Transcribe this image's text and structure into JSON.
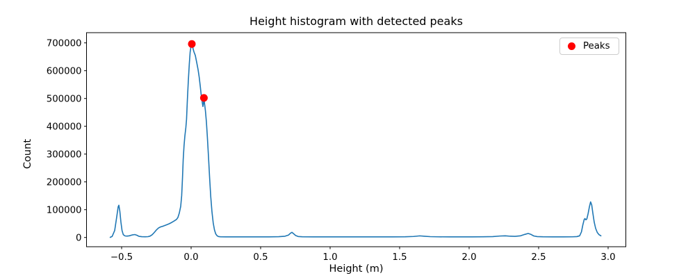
{
  "title": "Height histogram with detected peaks",
  "chart_data": {
    "type": "line",
    "title": "Height histogram with detected peaks",
    "xlabel": "Height (m)",
    "ylabel": "Count",
    "xlim": [
      -0.7525,
      3.1275
    ],
    "ylim": [
      -33250,
      736750
    ],
    "grid": false,
    "background": "#ffffff",
    "spine_color": "#000000",
    "legend": {
      "label": "Peaks",
      "position": "upper right",
      "marker_color": "#ff0000"
    },
    "x_ticks": [
      {
        "v": -0.5,
        "label": "−0.5"
      },
      {
        "v": 0.0,
        "label": "0.0"
      },
      {
        "v": 0.5,
        "label": "0.5"
      },
      {
        "v": 1.0,
        "label": "1.0"
      },
      {
        "v": 1.5,
        "label": "1.5"
      },
      {
        "v": 2.0,
        "label": "2.0"
      },
      {
        "v": 2.5,
        "label": "2.5"
      },
      {
        "v": 3.0,
        "label": "3.0"
      }
    ],
    "y_ticks": [
      {
        "v": 0,
        "label": "0"
      },
      {
        "v": 100000,
        "label": "100000"
      },
      {
        "v": 200000,
        "label": "200000"
      },
      {
        "v": 300000,
        "label": "300000"
      },
      {
        "v": 400000,
        "label": "400000"
      },
      {
        "v": 500000,
        "label": "500000"
      },
      {
        "v": 600000,
        "label": "600000"
      },
      {
        "v": 700000,
        "label": "700000"
      }
    ],
    "series": [
      {
        "name": "height-histogram",
        "color": "#1f77b4",
        "points": [
          [
            -0.582,
            500
          ],
          [
            -0.568,
            4000
          ],
          [
            -0.55,
            25000
          ],
          [
            -0.535,
            75000
          ],
          [
            -0.525,
            110000
          ],
          [
            -0.52,
            116000
          ],
          [
            -0.513,
            95000
          ],
          [
            -0.505,
            55000
          ],
          [
            -0.497,
            25000
          ],
          [
            -0.488,
            10000
          ],
          [
            -0.475,
            5500
          ],
          [
            -0.46,
            5000
          ],
          [
            -0.445,
            6000
          ],
          [
            -0.425,
            9000
          ],
          [
            -0.405,
            10500
          ],
          [
            -0.39,
            8000
          ],
          [
            -0.375,
            4000
          ],
          [
            -0.355,
            2800
          ],
          [
            -0.33,
            2500
          ],
          [
            -0.31,
            3000
          ],
          [
            -0.295,
            5000
          ],
          [
            -0.28,
            10000
          ],
          [
            -0.265,
            18000
          ],
          [
            -0.25,
            27000
          ],
          [
            -0.235,
            34000
          ],
          [
            -0.22,
            38000
          ],
          [
            -0.2,
            41000
          ],
          [
            -0.18,
            45000
          ],
          [
            -0.16,
            49000
          ],
          [
            -0.14,
            54000
          ],
          [
            -0.12,
            60000
          ],
          [
            -0.105,
            65000
          ],
          [
            -0.095,
            72000
          ],
          [
            -0.085,
            88000
          ],
          [
            -0.075,
            112000
          ],
          [
            -0.068,
            150000
          ],
          [
            -0.062,
            215000
          ],
          [
            -0.057,
            280000
          ],
          [
            -0.051,
            330000
          ],
          [
            -0.045,
            365000
          ],
          [
            -0.038,
            395000
          ],
          [
            -0.033,
            425000
          ],
          [
            -0.027,
            495000
          ],
          [
            -0.02,
            565000
          ],
          [
            -0.013,
            625000
          ],
          [
            -0.007,
            667000
          ],
          [
            0.0,
            690000
          ],
          [
            0.005,
            696000
          ],
          [
            0.012,
            683000
          ],
          [
            0.02,
            668000
          ],
          [
            0.03,
            655000
          ],
          [
            0.04,
            630000
          ],
          [
            0.05,
            604000
          ],
          [
            0.058,
            577000
          ],
          [
            0.066,
            543000
          ],
          [
            0.072,
            515000
          ],
          [
            0.077,
            497000
          ],
          [
            0.081,
            483000
          ],
          [
            0.085,
            471000
          ],
          [
            0.088,
            480000
          ],
          [
            0.092,
            502000
          ],
          [
            0.097,
            480000
          ],
          [
            0.103,
            455000
          ],
          [
            0.11,
            415000
          ],
          [
            0.117,
            360000
          ],
          [
            0.125,
            290000
          ],
          [
            0.133,
            215000
          ],
          [
            0.141,
            148000
          ],
          [
            0.15,
            92000
          ],
          [
            0.159,
            52000
          ],
          [
            0.168,
            27000
          ],
          [
            0.177,
            13000
          ],
          [
            0.186,
            6500
          ],
          [
            0.196,
            3500
          ],
          [
            0.21,
            2500
          ],
          [
            0.25,
            2200
          ],
          [
            0.32,
            2200
          ],
          [
            0.4,
            2200
          ],
          [
            0.48,
            2200
          ],
          [
            0.56,
            2300
          ],
          [
            0.63,
            2800
          ],
          [
            0.675,
            4500
          ],
          [
            0.7,
            8500
          ],
          [
            0.715,
            15500
          ],
          [
            0.725,
            18500
          ],
          [
            0.737,
            13500
          ],
          [
            0.752,
            7000
          ],
          [
            0.77,
            3500
          ],
          [
            0.8,
            2500
          ],
          [
            0.88,
            2200
          ],
          [
            0.96,
            2200
          ],
          [
            1.05,
            2200
          ],
          [
            1.15,
            2200
          ],
          [
            1.25,
            2200
          ],
          [
            1.35,
            2200
          ],
          [
            1.45,
            2300
          ],
          [
            1.54,
            2600
          ],
          [
            1.6,
            3600
          ],
          [
            1.645,
            5800
          ],
          [
            1.68,
            4500
          ],
          [
            1.72,
            3000
          ],
          [
            1.78,
            2400
          ],
          [
            1.86,
            2200
          ],
          [
            1.94,
            2200
          ],
          [
            2.02,
            2300
          ],
          [
            2.1,
            2500
          ],
          [
            2.17,
            3200
          ],
          [
            2.22,
            5200
          ],
          [
            2.26,
            6000
          ],
          [
            2.295,
            4600
          ],
          [
            2.33,
            4200
          ],
          [
            2.37,
            6000
          ],
          [
            2.4,
            11000
          ],
          [
            2.425,
            14500
          ],
          [
            2.445,
            11000
          ],
          [
            2.465,
            5500
          ],
          [
            2.49,
            3200
          ],
          [
            2.53,
            2500
          ],
          [
            2.6,
            2200
          ],
          [
            2.68,
            2200
          ],
          [
            2.74,
            2400
          ],
          [
            2.775,
            3200
          ],
          [
            2.795,
            6000
          ],
          [
            2.808,
            20000
          ],
          [
            2.818,
            45000
          ],
          [
            2.828,
            65000
          ],
          [
            2.833,
            68000
          ],
          [
            2.84,
            63500
          ],
          [
            2.847,
            67000
          ],
          [
            2.856,
            86000
          ],
          [
            2.866,
            112000
          ],
          [
            2.874,
            128000
          ],
          [
            2.882,
            117000
          ],
          [
            2.89,
            88000
          ],
          [
            2.9,
            55000
          ],
          [
            2.91,
            33000
          ],
          [
            2.922,
            18000
          ],
          [
            2.935,
            10000
          ],
          [
            2.948,
            6000
          ]
        ]
      }
    ],
    "peaks": {
      "name": "Peaks",
      "color": "#ff0000",
      "marker": "circle",
      "points": [
        [
          0.005,
          696000
        ],
        [
          0.092,
          502000
        ]
      ]
    }
  }
}
